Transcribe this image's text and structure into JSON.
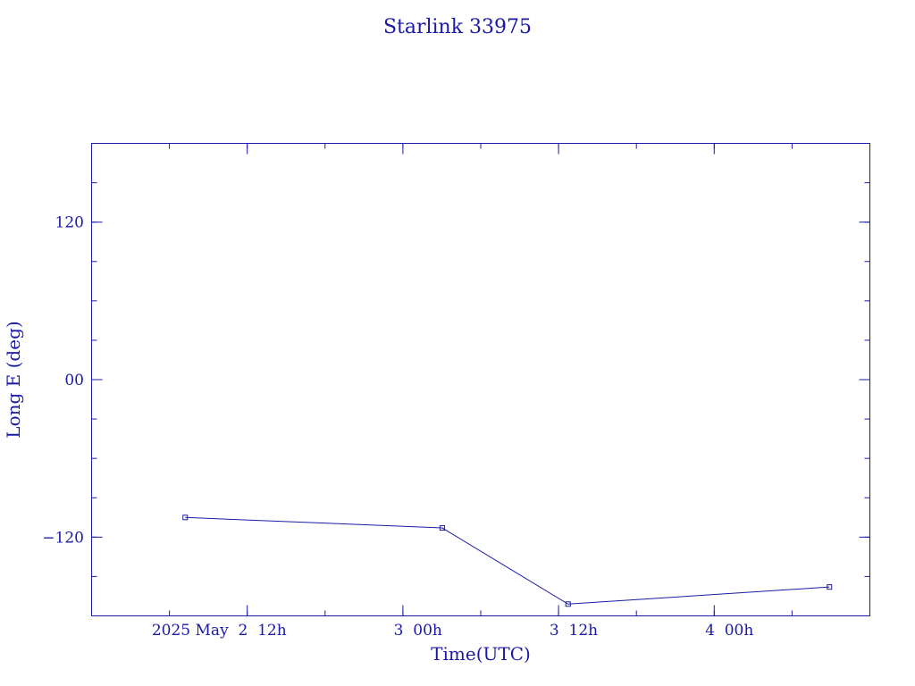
{
  "colors": {
    "ink": "#1a1aa6",
    "background": "#ffffff"
  },
  "chart_data": {
    "type": "line",
    "title": "Starlink 33975",
    "xlabel": "Time(UTC)",
    "ylabel": "Long E (deg)",
    "grid": false,
    "x_unit": "UTC",
    "xlim": [
      "2025-05-02T00:00",
      "2025-05-04T12:00"
    ],
    "ylim": [
      -180,
      180
    ],
    "x_ticks": [
      {
        "value": "2025-05-02T12:00",
        "label": "2025 May  2  12h"
      },
      {
        "value": "2025-05-03T00:00",
        "label": "3  00h"
      },
      {
        "value": "2025-05-03T12:00",
        "label": "3  12h"
      },
      {
        "value": "2025-05-04T00:00",
        "label": "4  00h"
      }
    ],
    "y_ticks": [
      {
        "value": 120,
        "label": "120"
      },
      {
        "value": 0,
        "label": "00"
      },
      {
        "value": -120,
        "label": "−120"
      }
    ],
    "series": [
      {
        "points": [
          {
            "x": "2025-05-02T07:13",
            "y": -105
          },
          {
            "x": "2025-05-03T03:02",
            "y": -113
          },
          {
            "x": "2025-05-03T12:44",
            "y": -171
          },
          {
            "x": "2025-05-04T08:53",
            "y": -158
          }
        ]
      }
    ]
  }
}
